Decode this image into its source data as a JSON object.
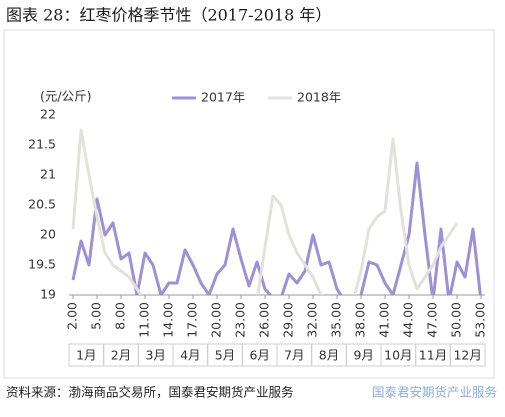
{
  "chart_data": {
    "type": "line",
    "title": "图表 28：红枣价格季节性（2017-2018 年）",
    "y_unit": "(元/公斤)",
    "source": "资料来源：渤海商品交易所，国泰君安期货产业服务",
    "watermark": "国泰君安期货产业服务",
    "x": [
      2,
      3,
      4,
      5,
      6,
      7,
      8,
      9,
      10,
      11,
      12,
      13,
      14,
      15,
      16,
      17,
      18,
      19,
      20,
      21,
      22,
      23,
      24,
      25,
      26,
      27,
      28,
      29,
      30,
      31,
      32,
      33,
      34,
      35,
      36,
      37,
      38,
      39,
      40,
      41,
      42,
      43,
      44,
      45,
      46,
      47,
      48,
      49,
      50,
      51,
      52,
      53
    ],
    "series": [
      {
        "name": "2017年",
        "color": "#9d90d6",
        "values": [
          19.25,
          19.9,
          19.5,
          20.6,
          20.0,
          20.2,
          19.6,
          19.7,
          19.0,
          19.7,
          19.5,
          19.0,
          19.2,
          19.2,
          19.75,
          19.5,
          19.2,
          19.0,
          19.35,
          19.5,
          20.1,
          19.6,
          19.15,
          19.55,
          19.1,
          18.95,
          18.95,
          19.35,
          19.2,
          19.4,
          20.0,
          19.5,
          19.55,
          19.1,
          18.9,
          18.9,
          19.0,
          19.55,
          19.5,
          19.2,
          19.0,
          19.5,
          20.0,
          21.2,
          20.0,
          18.9,
          20.1,
          18.9,
          19.55,
          19.3,
          20.1,
          18.9
        ]
      },
      {
        "name": "2018年",
        "color": "#e2e2da",
        "values": [
          20.1,
          21.75,
          21.0,
          20.3,
          19.7,
          19.5,
          19.4,
          19.3,
          19.1,
          18.9,
          null,
          null,
          null,
          null,
          null,
          null,
          null,
          null,
          null,
          null,
          null,
          null,
          null,
          18.9,
          19.8,
          20.65,
          20.5,
          20.0,
          19.7,
          19.5,
          19.3,
          19.0,
          18.9,
          null,
          null,
          18.9,
          19.4,
          20.1,
          20.3,
          20.4,
          21.6,
          20.4,
          19.5,
          19.1,
          19.3,
          19.5,
          19.8,
          20.0,
          20.2,
          null,
          null,
          null
        ]
      }
    ],
    "xlim": [
      1.5,
      53.5
    ],
    "xticks": [
      {
        "value": 2,
        "label": "2.00"
      },
      {
        "value": 5,
        "label": "5.00"
      },
      {
        "value": 8,
        "label": "8.00"
      },
      {
        "value": 11,
        "label": "11.00"
      },
      {
        "value": 14,
        "label": "14.00"
      },
      {
        "value": 17,
        "label": "17.00"
      },
      {
        "value": 20,
        "label": "20.00"
      },
      {
        "value": 23,
        "label": "23.00"
      },
      {
        "value": 26,
        "label": "26.00"
      },
      {
        "value": 29,
        "label": "29.00"
      },
      {
        "value": 32,
        "label": "32.00"
      },
      {
        "value": 35,
        "label": "35.00"
      },
      {
        "value": 38,
        "label": "38.00"
      },
      {
        "value": 41,
        "label": "41.00"
      },
      {
        "value": 44,
        "label": "44.00"
      },
      {
        "value": 47,
        "label": "47.00"
      },
      {
        "value": 50,
        "label": "50.00"
      },
      {
        "value": 53,
        "label": "53.00"
      }
    ],
    "months": [
      "1月",
      "2月",
      "3月",
      "4月",
      "5月",
      "6月",
      "7月",
      "8月",
      "9月",
      "10月",
      "11月",
      "12月"
    ],
    "ylim": [
      19,
      22
    ],
    "yticks": [
      19,
      19.5,
      20,
      20.5,
      21,
      21.5,
      22
    ]
  }
}
